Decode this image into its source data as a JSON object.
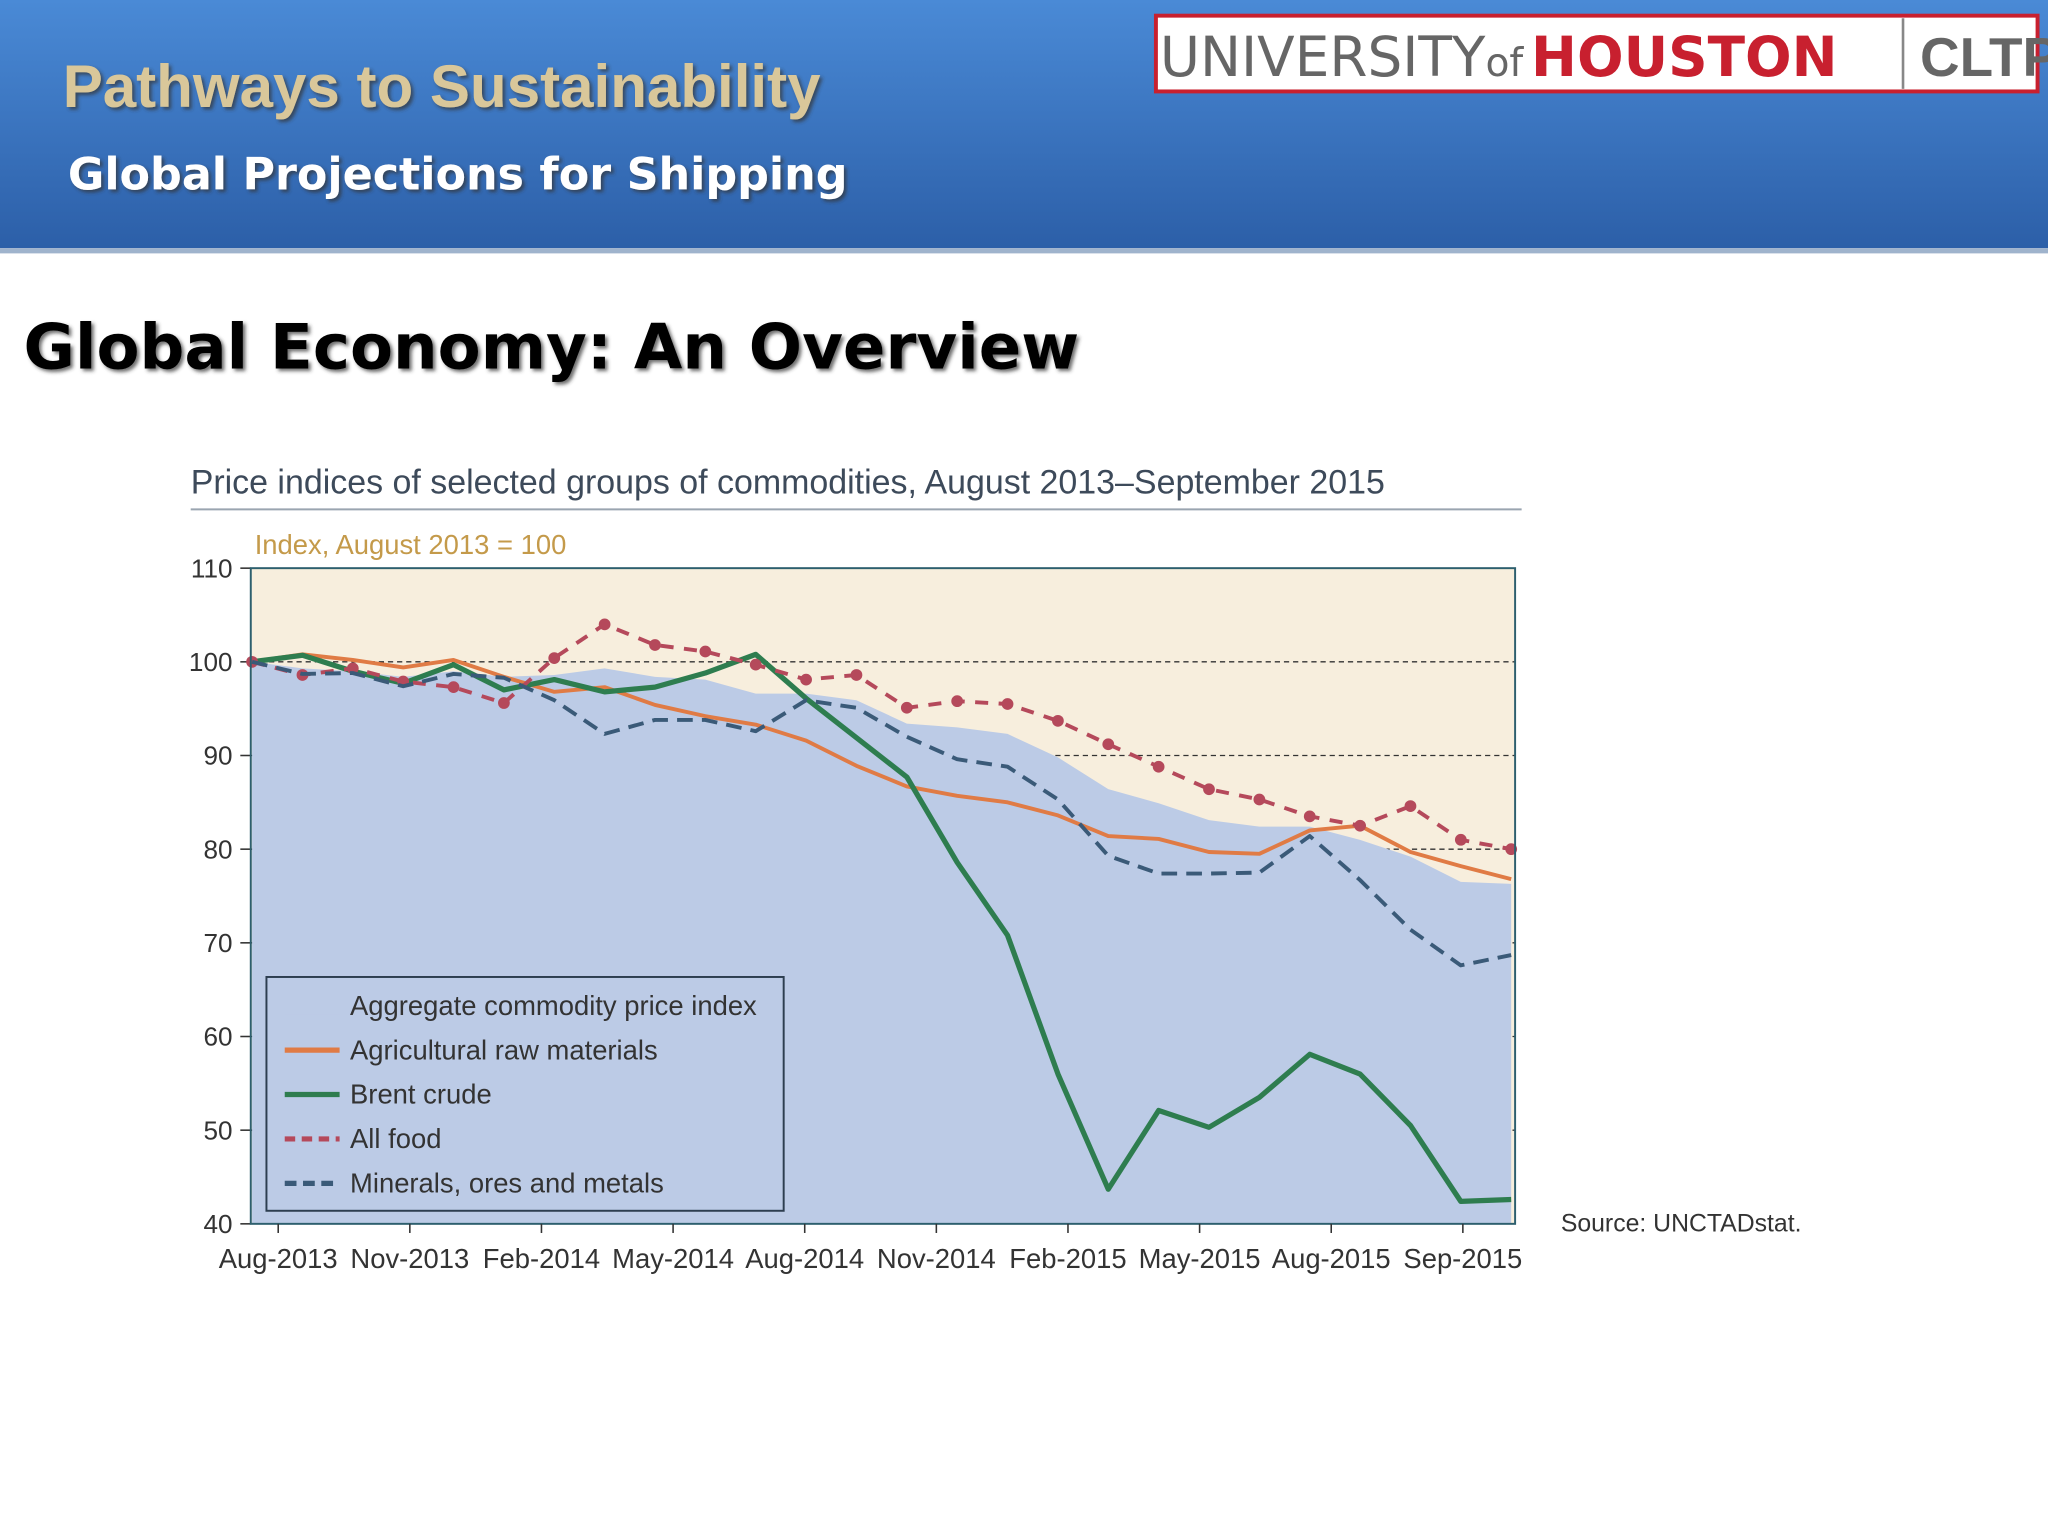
{
  "header": {
    "title": "Pathways to Sustainability",
    "subtitle": "Global Projections for Shipping",
    "logo": {
      "university": "UNIVERSITY",
      "of": "of",
      "houston": "HOUSTON",
      "unit": "CLTP"
    }
  },
  "heading": "Global Economy: An Overview",
  "chart_data": {
    "type": "line",
    "title": "Price indices of selected groups of commodities, August 2013–September 2015",
    "ylabel": "Index, August 2013 = 100",
    "source": "Source: UNCTADstat.",
    "x_labels": [
      "Aug-2013",
      "Nov-2013",
      "Feb-2014",
      "May-2014",
      "Aug-2014",
      "Nov-2014",
      "Feb-2015",
      "May-2015",
      "Aug-2015",
      "Sep-2015"
    ],
    "ylim": [
      40,
      110
    ],
    "yticks": [
      40,
      50,
      60,
      70,
      80,
      90,
      100,
      110
    ],
    "grid": true,
    "series": [
      {
        "name": "Aggregate commodity price index",
        "color": "#bccbe6",
        "style": "area",
        "values": [
          100,
          99.3,
          99,
          98.4,
          99,
          98.4,
          98.6,
          99.3,
          98.4,
          98.1,
          96.6,
          96.6,
          95.9,
          93.4,
          93,
          92.3,
          89.8,
          86.4,
          84.9,
          83.1,
          82.4,
          82.4,
          81,
          79.2,
          76.5,
          76.3
        ]
      },
      {
        "name": "Agricultural raw materials",
        "color": "#e07b45",
        "style": "solid",
        "values": [
          100,
          100.8,
          100.2,
          99.4,
          100.2,
          98.4,
          96.8,
          97.3,
          95.4,
          94.2,
          93.3,
          91.6,
          88.9,
          86.7,
          85.7,
          85,
          83.6,
          81.4,
          81.1,
          79.7,
          79.5,
          82,
          82.5,
          79.7,
          78.2,
          76.8
        ]
      },
      {
        "name": "Brent crude",
        "color": "#2e7d4f",
        "style": "solid",
        "values": [
          100,
          100.7,
          99,
          97.7,
          99.7,
          97,
          98.1,
          96.8,
          97.3,
          98.8,
          100.8,
          96.1,
          91.9,
          87.7,
          78.6,
          70.8,
          56,
          43.7,
          52.1,
          50.3,
          53.5,
          58.1,
          56,
          50.5,
          42.4,
          42.6
        ]
      },
      {
        "name": "All food",
        "color": "#b5495b",
        "style": "dotted",
        "values": [
          100,
          98.6,
          99.3,
          97.9,
          97.3,
          95.6,
          100.4,
          104,
          101.8,
          101.1,
          99.7,
          98.1,
          98.6,
          95.1,
          95.8,
          95.5,
          93.7,
          91.2,
          88.8,
          86.4,
          85.3,
          83.5,
          82.5,
          84.6,
          81,
          80
        ]
      },
      {
        "name": "Minerals, ores and metals",
        "color": "#3a5a78",
        "style": "dashed",
        "values": [
          100,
          98.7,
          98.8,
          97.4,
          98.7,
          98.3,
          95.9,
          92.3,
          93.8,
          93.8,
          92.6,
          95.9,
          95.1,
          92,
          89.6,
          88.8,
          85.3,
          79.3,
          77.4,
          77.4,
          77.5,
          81.4,
          76.7,
          71.4,
          67.6,
          68.7
        ]
      }
    ]
  }
}
